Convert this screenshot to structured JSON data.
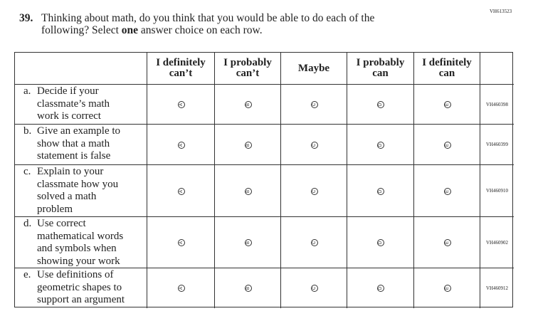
{
  "header": {
    "code": "VH613523"
  },
  "question": {
    "number": "39.",
    "text_parts": [
      "Thinking about math, do you think that you would be able to do each of the",
      "following? Select ",
      "one",
      " answer choice on each row."
    ]
  },
  "table": {
    "columns": [
      [
        "I definitely",
        "can’t"
      ],
      [
        "I probably",
        "can’t"
      ],
      [
        "Maybe"
      ],
      [
        "I probably",
        "can"
      ],
      [
        "I definitely",
        "can"
      ]
    ],
    "bubble_letters": [
      "A",
      "B",
      "C",
      "D",
      "E"
    ],
    "rows": [
      {
        "marker": "a.",
        "lines": [
          "Decide if your",
          "classmate’s math",
          "work is correct"
        ],
        "code": "VH460398"
      },
      {
        "marker": "b.",
        "lines": [
          "Give an example to",
          "show that a math",
          "statement is false"
        ],
        "code": "VH460399"
      },
      {
        "marker": "c.",
        "lines": [
          "Explain to your",
          "classmate how you",
          "solved a math",
          "problem"
        ],
        "code": "VH460910"
      },
      {
        "marker": "d.",
        "lines": [
          "Use correct",
          "mathematical words",
          "and symbols when",
          "showing your work"
        ],
        "code": "VH460902"
      },
      {
        "marker": "e.",
        "lines": [
          "Use definitions of",
          "geometric shapes to",
          "support an argument"
        ],
        "code": "VH460912"
      }
    ]
  }
}
